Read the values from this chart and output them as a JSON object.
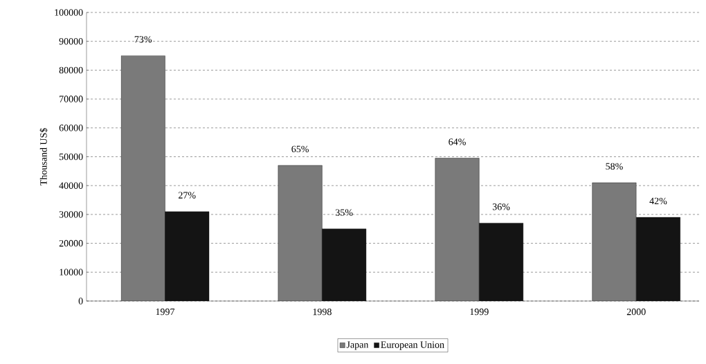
{
  "chart_data": {
    "type": "bar",
    "ylabel": "Thousand US$",
    "categories": [
      "1997",
      "1998",
      "1999",
      "2000"
    ],
    "series": [
      {
        "name": "Japan",
        "color": "#7a7a7a",
        "values": [
          85000,
          47000,
          49500,
          41000
        ]
      },
      {
        "name": "European Union",
        "color": "#141414",
        "values": [
          31000,
          25000,
          27000,
          29000
        ]
      }
    ],
    "annotations": [
      {
        "text": "73%",
        "x": "1997",
        "y": 85000
      },
      {
        "text": "65%",
        "x": "1998",
        "y": 47000
      },
      {
        "text": "64%",
        "x": "1999",
        "y": 49500
      },
      {
        "text": "58%",
        "x": "2000",
        "y": 41000
      },
      {
        "text": "27%",
        "x": "1997",
        "y": 31000
      },
      {
        "text": "35%",
        "x": "1998",
        "y": 25000
      },
      {
        "text": "36%",
        "x": "1999",
        "y": 27000
      },
      {
        "text": "42%",
        "x": "2000",
        "y": 29000
      }
    ],
    "ylim": [
      0,
      100000
    ],
    "yticks": [
      0,
      10000,
      20000,
      30000,
      40000,
      50000,
      60000,
      70000,
      80000,
      90000,
      100000
    ],
    "grid": "y",
    "legend": "bottom"
  }
}
